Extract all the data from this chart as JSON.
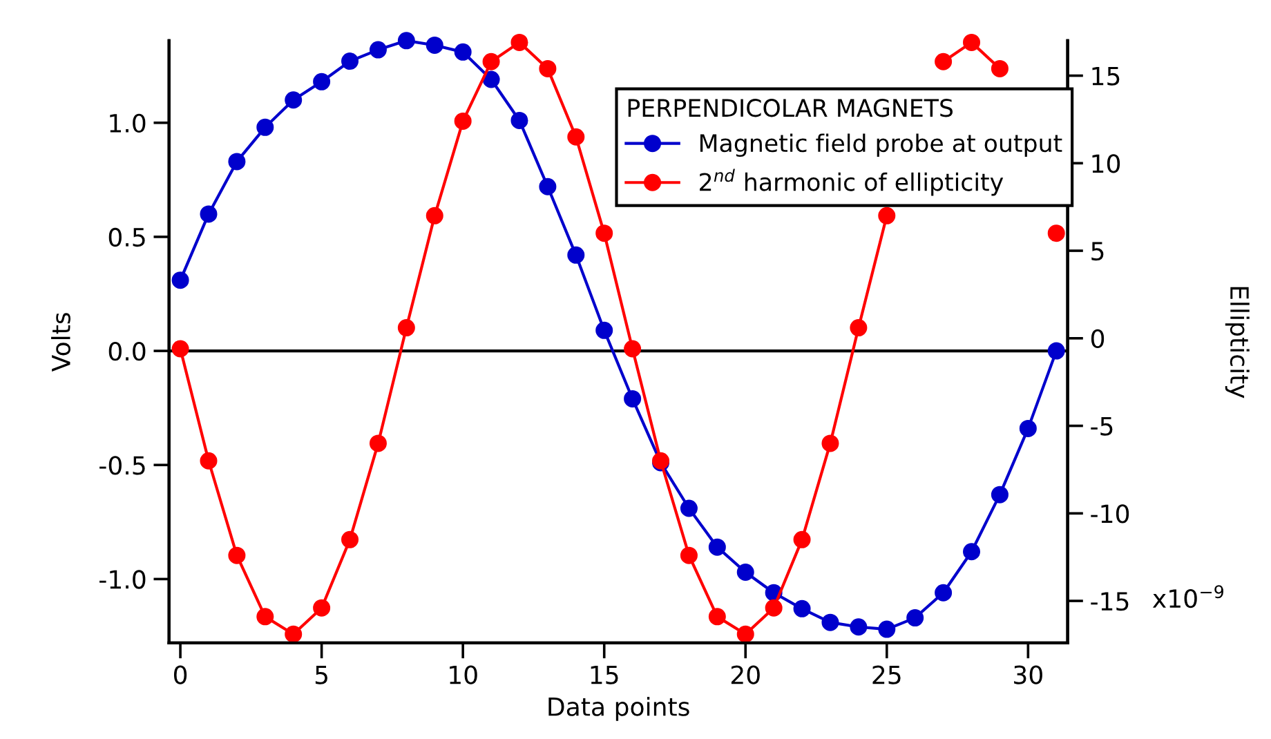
{
  "chart_data": {
    "type": "line",
    "xlabel": "Data points",
    "ylabel": "Volts",
    "y2label": "Ellipticity",
    "legend_title": "PERPENDICOLAR MAGNETS",
    "x": [
      0,
      1,
      2,
      3,
      4,
      5,
      6,
      7,
      8,
      9,
      10,
      11,
      12,
      13,
      14,
      15,
      16,
      17,
      18,
      19,
      20,
      21,
      22,
      23,
      24,
      25,
      26,
      27,
      28,
      29,
      30,
      31
    ],
    "series": [
      {
        "name": "Magnetic field probe at output",
        "color": "#0000cc",
        "values": [
          0.31,
          0.6,
          0.83,
          0.98,
          1.1,
          1.18,
          1.27,
          1.32,
          1.36,
          1.34,
          1.31,
          1.19,
          1.01,
          0.72,
          0.42,
          0.09,
          -0.21,
          -0.49,
          -0.69,
          -0.86,
          -0.97,
          -1.06,
          -1.13,
          -1.19,
          -1.21,
          -1.22,
          -1.17,
          -1.06,
          -0.88,
          -0.63,
          -0.34,
          0.0
        ]
      },
      {
        "name": "2$^{nd}$ harmonic of ellipticity",
        "color": "#ff0000",
        "axis": "y2",
        "values": [
          -0.6,
          -7.0,
          -12.4,
          -15.9,
          -16.9,
          -15.4,
          -11.5,
          -6.0,
          0.6,
          7.0,
          12.4,
          15.8,
          16.9,
          15.4,
          11.5,
          6.0,
          -0.6,
          -7.0,
          -12.4,
          -15.9,
          -16.9,
          -15.4,
          -11.5,
          -6.0,
          0.6,
          7.0,
          null,
          15.8,
          16.9,
          15.4,
          null,
          6.0
        ]
      }
    ],
    "xlim": [
      -0.4,
      31.4
    ],
    "xticks": [
      0,
      5,
      10,
      15,
      20,
      25,
      30
    ],
    "ylim": [
      -1.28,
      1.36
    ],
    "yticks": [
      {
        "value": -1.0,
        "label": "-1.0"
      },
      {
        "value": -0.5,
        "label": "-0.5"
      },
      {
        "value": 0,
        "label": "0.0"
      },
      {
        "value": 0.5,
        "label": "0.5"
      },
      {
        "value": 1.0,
        "label": "1.0"
      }
    ],
    "y2lim": [
      -17.4,
      17.0
    ],
    "y2ticks": [
      -15,
      -10,
      -5,
      0,
      5,
      10,
      15
    ],
    "annotations": [
      "x10$^{−9}$"
    ],
    "ref_lines": [
      {
        "axis": "y",
        "value": 0,
        "color": "#000000"
      }
    ],
    "marker": "circle",
    "line_style": "solid",
    "grid": false,
    "legend": "top right"
  }
}
